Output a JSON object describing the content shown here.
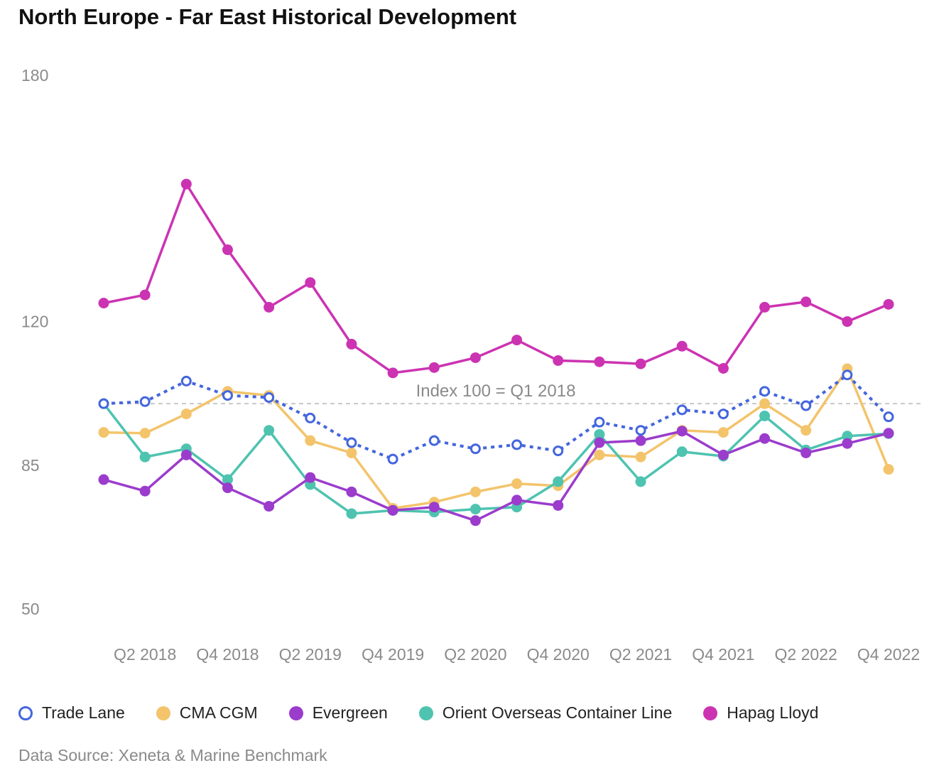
{
  "chart_data": {
    "type": "line",
    "title": "North Europe - Far East Historical Development",
    "xlabel": "",
    "ylabel": "",
    "ylim": [
      50,
      180
    ],
    "yticks": [
      "180",
      "120",
      "85",
      "50"
    ],
    "ytick_values": [
      180,
      120,
      85,
      50
    ],
    "categories": [
      "Q1 2018",
      "Q2 2018",
      "Q3 2018",
      "Q4 2018",
      "Q1 2019",
      "Q2 2019",
      "Q3 2019",
      "Q4 2019",
      "Q1 2020",
      "Q2 2020",
      "Q3 2020",
      "Q4 2020",
      "Q1 2021",
      "Q2 2021",
      "Q3 2021",
      "Q4 2021",
      "Q1 2022",
      "Q2 2022",
      "Q3 2022",
      "Q4 2022"
    ],
    "xtick_labels": [
      "Q2 2018",
      "Q4 2018",
      "Q2 2019",
      "Q4 2019",
      "Q2 2020",
      "Q4 2020",
      "Q2 2021",
      "Q4 2021",
      "Q2 2022",
      "Q4 2022"
    ],
    "xtick_indices": [
      1,
      3,
      5,
      7,
      9,
      11,
      13,
      15,
      17,
      19
    ],
    "reference_line": {
      "value": 100,
      "label": "Index 100 = Q1 2018"
    },
    "series": [
      {
        "name": "Trade Lane",
        "color": "#4466dd",
        "style": "dotted",
        "marker": "hollow",
        "values": [
          100,
          100.5,
          105.5,
          102,
          101.5,
          96.5,
          90.5,
          86.5,
          91,
          89,
          90,
          88.5,
          95.5,
          93.5,
          98.5,
          97.5,
          103,
          99.5,
          107,
          96.8
        ]
      },
      {
        "name": "CMA CGM",
        "color": "#f3c46b",
        "style": "solid",
        "marker": "filled",
        "values": [
          93,
          92.8,
          97.5,
          103,
          102,
          91,
          88,
          74.5,
          76,
          78.5,
          80.5,
          80,
          87.5,
          87,
          93.5,
          93,
          100,
          93.5,
          108.5,
          84
        ]
      },
      {
        "name": "Evergreen",
        "color": "#9b3ccc",
        "style": "solid",
        "marker": "filled",
        "values": [
          81.5,
          78.7,
          87.5,
          79.5,
          75,
          82,
          78.5,
          74,
          74.8,
          71.5,
          76.5,
          75.2,
          90.5,
          91,
          93.3,
          87.5,
          91.5,
          88,
          90.3,
          92.8
        ]
      },
      {
        "name": "Orient Overseas Container Line",
        "color": "#4ec3b0",
        "style": "solid",
        "marker": "filled",
        "values": [
          100,
          87,
          89,
          81.5,
          93.5,
          80.3,
          73.2,
          74,
          73.6,
          74.3,
          74.8,
          81,
          92.5,
          81,
          88.3,
          87.2,
          97,
          88.7,
          92.1,
          92.7
        ]
      },
      {
        "name": "Hapag Lloyd",
        "color": "#cc33b2",
        "style": "solid",
        "marker": "filled",
        "values": [
          124.5,
          126.5,
          153.5,
          137.5,
          123.5,
          129.5,
          114.5,
          107.5,
          108.8,
          111.2,
          115.5,
          110.5,
          110.2,
          109.7,
          114,
          108.6,
          123.5,
          124.8,
          120,
          124.2
        ]
      }
    ]
  },
  "legend": [
    {
      "label": "Trade Lane",
      "color": "#4466dd",
      "marker": "hollow"
    },
    {
      "label": "CMA CGM",
      "color": "#f3c46b",
      "marker": "filled"
    },
    {
      "label": "Evergreen",
      "color": "#9b3ccc",
      "marker": "filled"
    },
    {
      "label": "Orient Overseas Container Line",
      "color": "#4ec3b0",
      "marker": "filled"
    },
    {
      "label": "Hapag Lloyd",
      "color": "#cc33b2",
      "marker": "filled"
    }
  ],
  "source": "Data Source: Xeneta & Marine Benchmark"
}
